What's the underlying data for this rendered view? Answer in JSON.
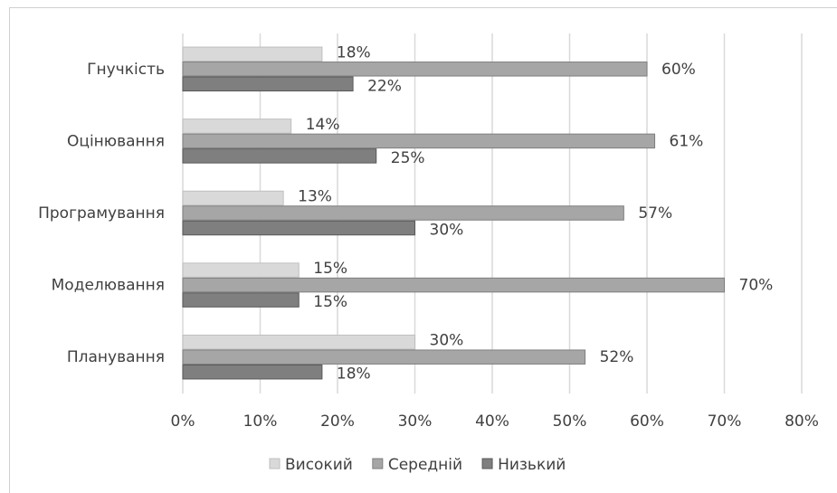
{
  "chart_data": {
    "type": "bar",
    "orientation": "horizontal",
    "categories": [
      "Гнучкість",
      "Оцінювання",
      "Програмування",
      "Моделювання",
      "Планування"
    ],
    "series": [
      {
        "name": "Високий",
        "color": "#d9d9d9",
        "values": [
          18,
          14,
          13,
          15,
          30
        ],
        "value_labels": [
          "18%",
          "14%",
          "13%",
          "15%",
          "30%"
        ]
      },
      {
        "name": "Середній",
        "color": "#a6a6a6",
        "values": [
          60,
          61,
          57,
          70,
          52
        ],
        "value_labels": [
          "60%",
          "61%",
          "57%",
          "70%",
          "52%"
        ]
      },
      {
        "name": "Низький",
        "color": "#7f7f7f",
        "values": [
          22,
          25,
          30,
          15,
          18
        ],
        "value_labels": [
          "22%",
          "25%",
          "30%",
          "15%",
          "18%"
        ]
      }
    ],
    "xlim": [
      0,
      80
    ],
    "xticks": [
      {
        "value": 0,
        "label": "0%"
      },
      {
        "value": 10,
        "label": "10%"
      },
      {
        "value": 20,
        "label": "20%"
      },
      {
        "value": 30,
        "label": "30%"
      },
      {
        "value": 40,
        "label": "40%"
      },
      {
        "value": 50,
        "label": "50%"
      },
      {
        "value": 60,
        "label": "60%"
      },
      {
        "value": 70,
        "label": "70%"
      },
      {
        "value": 80,
        "label": "80%"
      }
    ],
    "grid": true,
    "legend": "bottom"
  }
}
